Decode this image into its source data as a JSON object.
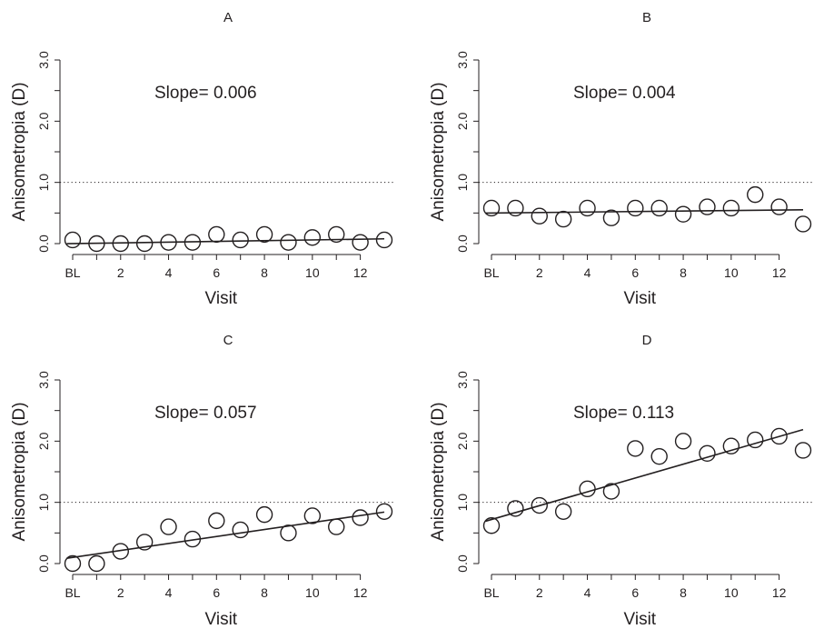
{
  "chart_data": [
    {
      "type": "scatter",
      "title": "A",
      "xlabel": "Visit",
      "ylabel": "Anisometropia (D)",
      "x_tick_labels": [
        "BL",
        "2",
        "4",
        "6",
        "8",
        "10",
        "12"
      ],
      "y_tick_labels": [
        "0.0",
        "1.0",
        "2.0",
        "3.0"
      ],
      "xlim": [
        0,
        13
      ],
      "ylim": [
        0,
        3
      ],
      "reference_line": 1.0,
      "annotation": "Slope= 0.006",
      "fit": {
        "intercept": 0.0,
        "slope": 0.006
      },
      "x": [
        0,
        1,
        2,
        3,
        4,
        5,
        6,
        7,
        8,
        9,
        10,
        11,
        12,
        13
      ],
      "y": [
        0.06,
        0.0,
        0.0,
        0.0,
        0.02,
        0.02,
        0.15,
        0.06,
        0.15,
        0.02,
        0.1,
        0.15,
        0.02,
        0.06
      ]
    },
    {
      "type": "scatter",
      "title": "B",
      "xlabel": "Visit",
      "ylabel": "Anisometropia (D)",
      "x_tick_labels": [
        "BL",
        "2",
        "4",
        "6",
        "8",
        "10",
        "12"
      ],
      "y_tick_labels": [
        "0.0",
        "1.0",
        "2.0",
        "3.0"
      ],
      "xlim": [
        0,
        13
      ],
      "ylim": [
        0,
        3
      ],
      "reference_line": 1.0,
      "annotation": "Slope= 0.004",
      "fit": {
        "intercept": 0.5,
        "slope": 0.004
      },
      "x": [
        0,
        1,
        2,
        3,
        4,
        5,
        6,
        7,
        8,
        9,
        10,
        11,
        12,
        13
      ],
      "y": [
        0.58,
        0.58,
        0.45,
        0.4,
        0.58,
        0.42,
        0.58,
        0.58,
        0.48,
        0.6,
        0.58,
        0.8,
        0.6,
        0.32
      ]
    },
    {
      "type": "scatter",
      "title": "C",
      "xlabel": "Visit",
      "ylabel": "Anisometropia (D)",
      "x_tick_labels": [
        "BL",
        "2",
        "4",
        "6",
        "8",
        "10",
        "12"
      ],
      "y_tick_labels": [
        "0.0",
        "1.0",
        "2.0",
        "3.0"
      ],
      "xlim": [
        0,
        13
      ],
      "ylim": [
        0,
        3
      ],
      "reference_line": 1.0,
      "annotation": "Slope= 0.057",
      "fit": {
        "intercept": 0.1,
        "slope": 0.057
      },
      "x": [
        0,
        1,
        2,
        3,
        4,
        5,
        6,
        7,
        8,
        9,
        10,
        11,
        12,
        13
      ],
      "y": [
        0.0,
        0.0,
        0.2,
        0.35,
        0.6,
        0.4,
        0.7,
        0.55,
        0.8,
        0.5,
        0.78,
        0.6,
        0.75,
        0.85
      ]
    },
    {
      "type": "scatter",
      "title": "D",
      "xlabel": "Visit",
      "ylabel": "Anisometropia (D)",
      "x_tick_labels": [
        "BL",
        "2",
        "4",
        "6",
        "8",
        "10",
        "12"
      ],
      "y_tick_labels": [
        "0.0",
        "1.0",
        "2.0",
        "3.0"
      ],
      "xlim": [
        0,
        13
      ],
      "ylim": [
        0,
        3
      ],
      "reference_line": 1.0,
      "annotation": "Slope= 0.113",
      "fit": {
        "intercept": 0.72,
        "slope": 0.113
      },
      "x": [
        0,
        1,
        2,
        3,
        4,
        5,
        6,
        7,
        8,
        9,
        10,
        11,
        12,
        13
      ],
      "y": [
        0.62,
        0.9,
        0.95,
        0.85,
        1.22,
        1.18,
        1.88,
        1.75,
        2.0,
        1.8,
        1.92,
        2.02,
        2.08,
        1.85
      ]
    }
  ]
}
